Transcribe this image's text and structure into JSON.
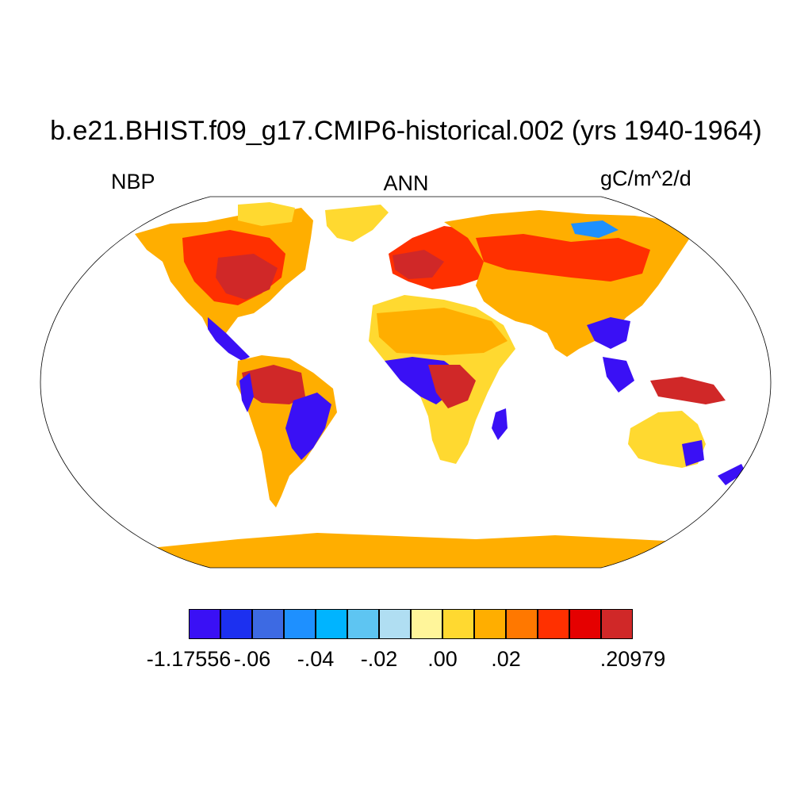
{
  "title": "b.e21.BHIST.f09_g17.CMIP6-historical.002 (yrs 1940-1964)",
  "variable": "NBP",
  "season": "ANN",
  "units": "gC/m^2/d",
  "colorbar": {
    "colors": [
      "#3a10f5",
      "#1c30f0",
      "#3d6ae3",
      "#1e90ff",
      "#00b4ff",
      "#5ec5f2",
      "#b0def2",
      "#fff59a",
      "#ffd930",
      "#ffae00",
      "#ff7800",
      "#ff3000",
      "#e50000",
      "#d02828"
    ],
    "labels": [
      "-1.17556",
      "-.06",
      "-.04",
      "-.02",
      ".00",
      ".02",
      ".20979"
    ],
    "label_boundaries": [
      0,
      2,
      4,
      6,
      8,
      10,
      14
    ]
  },
  "regions": {
    "ocean": "#ffffff",
    "antarctica": "#ffae00"
  }
}
